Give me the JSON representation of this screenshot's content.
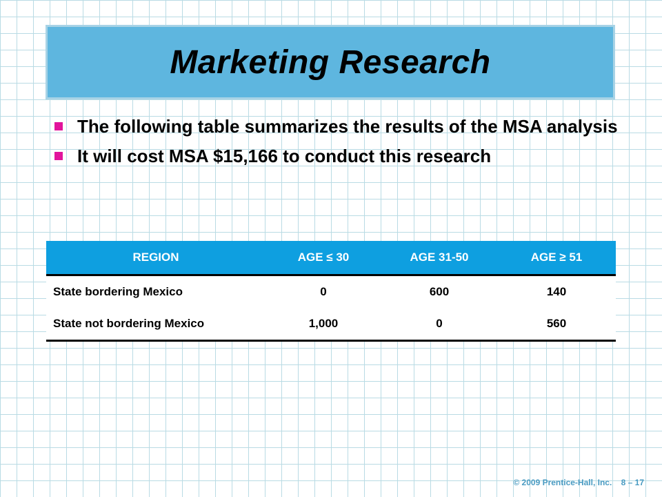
{
  "title": "Marketing Research",
  "bullets": [
    "The following table summarizes the results of the MSA analysis",
    "It will cost MSA $15,166 to conduct this research"
  ],
  "table": {
    "headers": [
      "REGION",
      "AGE ≤ 30",
      "AGE 31-50",
      "AGE ≥ 51"
    ],
    "rows": [
      [
        "State bordering Mexico",
        "0",
        "600",
        "140"
      ],
      [
        "State not bordering Mexico",
        "1,000",
        "0",
        "560"
      ]
    ]
  },
  "footer": {
    "copyright": "© 2009 Prentice-Hall, Inc.",
    "page": "8 – 17"
  },
  "colors": {
    "title_bg": "#5eb6df",
    "table_header_bg": "#0e9fe0",
    "bullet": "#e2149c",
    "grid": "#b9dbe4"
  }
}
